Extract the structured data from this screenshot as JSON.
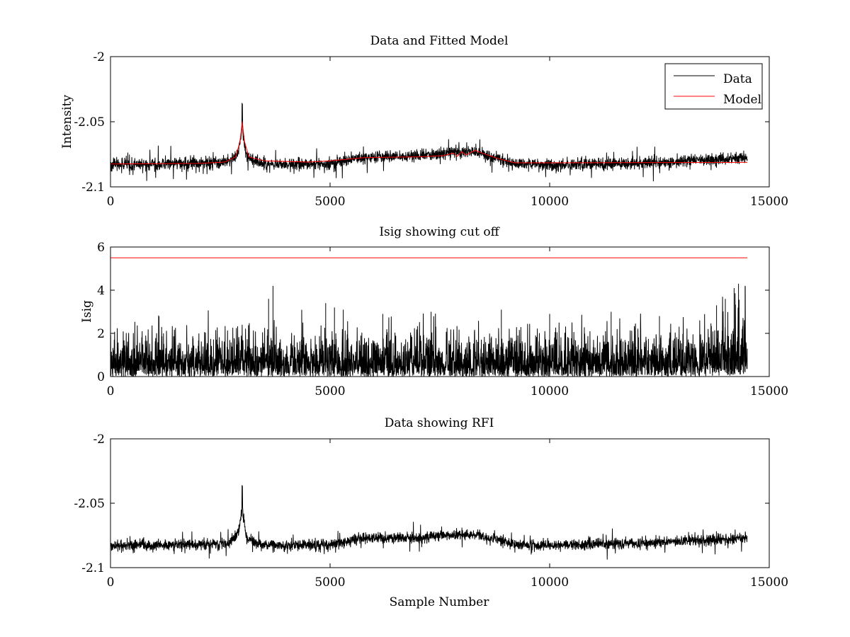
{
  "chart_data": [
    {
      "type": "line",
      "title": "Data and Fitted Model",
      "xlabel": "",
      "ylabel": "Intensity",
      "xlim": [
        0,
        15000
      ],
      "ylim": [
        -2.1,
        -2
      ],
      "xticks": [
        0,
        5000,
        10000,
        15000
      ],
      "xtick_labels": [
        "0",
        "5000",
        "10000",
        "15000"
      ],
      "yticks": [
        -2.1,
        -2.05,
        -2
      ],
      "ytick_labels": [
        "-2.1",
        "-2.05",
        "-2"
      ],
      "grid": false,
      "legend": {
        "placement": "top-right",
        "entries": [
          "Data",
          "Model"
        ]
      },
      "series": [
        {
          "name": "Data",
          "color": "#000000",
          "x_range": [
            0,
            14500
          ],
          "baseline_points": [
            [
              0,
              -2.083
            ],
            [
              2000,
              -2.082
            ],
            [
              2700,
              -2.081
            ],
            [
              2900,
              -2.074
            ],
            [
              2980,
              -2.06
            ],
            [
              3000,
              -2.053
            ],
            [
              3020,
              -2.06
            ],
            [
              3100,
              -2.077
            ],
            [
              3400,
              -2.082
            ],
            [
              4000,
              -2.083
            ],
            [
              5000,
              -2.082
            ],
            [
              5600,
              -2.078
            ],
            [
              6000,
              -2.077
            ],
            [
              7000,
              -2.076
            ],
            [
              8000,
              -2.073
            ],
            [
              8400,
              -2.074
            ],
            [
              8800,
              -2.078
            ],
            [
              9200,
              -2.082
            ],
            [
              10000,
              -2.083
            ],
            [
              12000,
              -2.082
            ],
            [
              14500,
              -2.078
            ]
          ],
          "noise_amplitude": 0.005,
          "peak": {
            "x": 3000,
            "y": -2.037
          }
        },
        {
          "name": "Model",
          "color": "#ff0000",
          "points": [
            [
              0,
              -2.0825
            ],
            [
              1000,
              -2.0822
            ],
            [
              2000,
              -2.082
            ],
            [
              2600,
              -2.081
            ],
            [
              2850,
              -2.077
            ],
            [
              2950,
              -2.065
            ],
            [
              3000,
              -2.05
            ],
            [
              3050,
              -2.065
            ],
            [
              3150,
              -2.077
            ],
            [
              3500,
              -2.08
            ],
            [
              4500,
              -2.081
            ],
            [
              5000,
              -2.08
            ],
            [
              5800,
              -2.0775
            ],
            [
              7000,
              -2.077
            ],
            [
              7600,
              -2.076
            ],
            [
              7800,
              -2.074
            ],
            [
              7900,
              -2.0765
            ],
            [
              8000,
              -2.073
            ],
            [
              8100,
              -2.0755
            ],
            [
              8300,
              -2.072
            ],
            [
              8500,
              -2.0745
            ],
            [
              8800,
              -2.078
            ],
            [
              9200,
              -2.0815
            ],
            [
              10000,
              -2.0815
            ],
            [
              14500,
              -2.0812
            ]
          ]
        }
      ]
    },
    {
      "type": "line",
      "title": "Isig showing cut off",
      "xlabel": "",
      "ylabel": "Isig",
      "xlim": [
        0,
        15000
      ],
      "ylim": [
        0,
        6
      ],
      "xticks": [
        0,
        5000,
        10000,
        15000
      ],
      "xtick_labels": [
        "0",
        "5000",
        "10000",
        "15000"
      ],
      "yticks": [
        0,
        2,
        4,
        6
      ],
      "ytick_labels": [
        "0",
        "2",
        "4",
        "6"
      ],
      "grid": false,
      "series": [
        {
          "color": "#000000",
          "x_range": [
            0,
            14500
          ],
          "typical_max": 2.2,
          "spike_points": [
            [
              3700,
              4.2
            ],
            [
              3600,
              3.6
            ],
            [
              4900,
              3.4
            ],
            [
              5100,
              3.2
            ],
            [
              5300,
              3.1
            ],
            [
              6200,
              2.9
            ],
            [
              7300,
              3.0
            ],
            [
              8900,
              3.1
            ],
            [
              10000,
              2.9
            ],
            [
              11400,
              3.0
            ],
            [
              12500,
              2.8
            ],
            [
              13800,
              3.3
            ],
            [
              14000,
              3.6
            ],
            [
              14200,
              4.1
            ],
            [
              14300,
              4.3
            ],
            [
              14450,
              4.2
            ]
          ],
          "rising_tail_from": 13500
        },
        {
          "color": "#ff0000",
          "points": [
            [
              0,
              5.5
            ],
            [
              14500,
              5.5
            ]
          ]
        }
      ]
    },
    {
      "type": "line",
      "title": "Data showing RFI",
      "xlabel": "Sample Number",
      "ylabel": "",
      "xlim": [
        0,
        15000
      ],
      "ylim": [
        -2.1,
        -2
      ],
      "xticks": [
        0,
        5000,
        10000,
        15000
      ],
      "xtick_labels": [
        "0",
        "5000",
        "10000",
        "15000"
      ],
      "yticks": [
        -2.1,
        -2.05,
        -2
      ],
      "ytick_labels": [
        "-2.1",
        "-2.05",
        "-2"
      ],
      "grid": false,
      "series": [
        {
          "color": "#000000",
          "x_range": [
            0,
            14500
          ],
          "baseline_points": [
            [
              0,
              -2.083
            ],
            [
              2000,
              -2.082
            ],
            [
              2700,
              -2.081
            ],
            [
              2900,
              -2.074
            ],
            [
              2980,
              -2.06
            ],
            [
              3000,
              -2.053
            ],
            [
              3020,
              -2.06
            ],
            [
              3100,
              -2.077
            ],
            [
              3400,
              -2.082
            ],
            [
              4000,
              -2.083
            ],
            [
              5000,
              -2.082
            ],
            [
              5600,
              -2.078
            ],
            [
              6000,
              -2.077
            ],
            [
              7000,
              -2.077
            ],
            [
              8000,
              -2.074
            ],
            [
              8400,
              -2.075
            ],
            [
              8800,
              -2.078
            ],
            [
              9200,
              -2.082
            ],
            [
              10000,
              -2.083
            ],
            [
              12000,
              -2.081
            ],
            [
              14500,
              -2.077
            ]
          ],
          "noise_amplitude": 0.0045,
          "peak": {
            "x": 3000,
            "y": -2.037
          }
        }
      ]
    }
  ]
}
